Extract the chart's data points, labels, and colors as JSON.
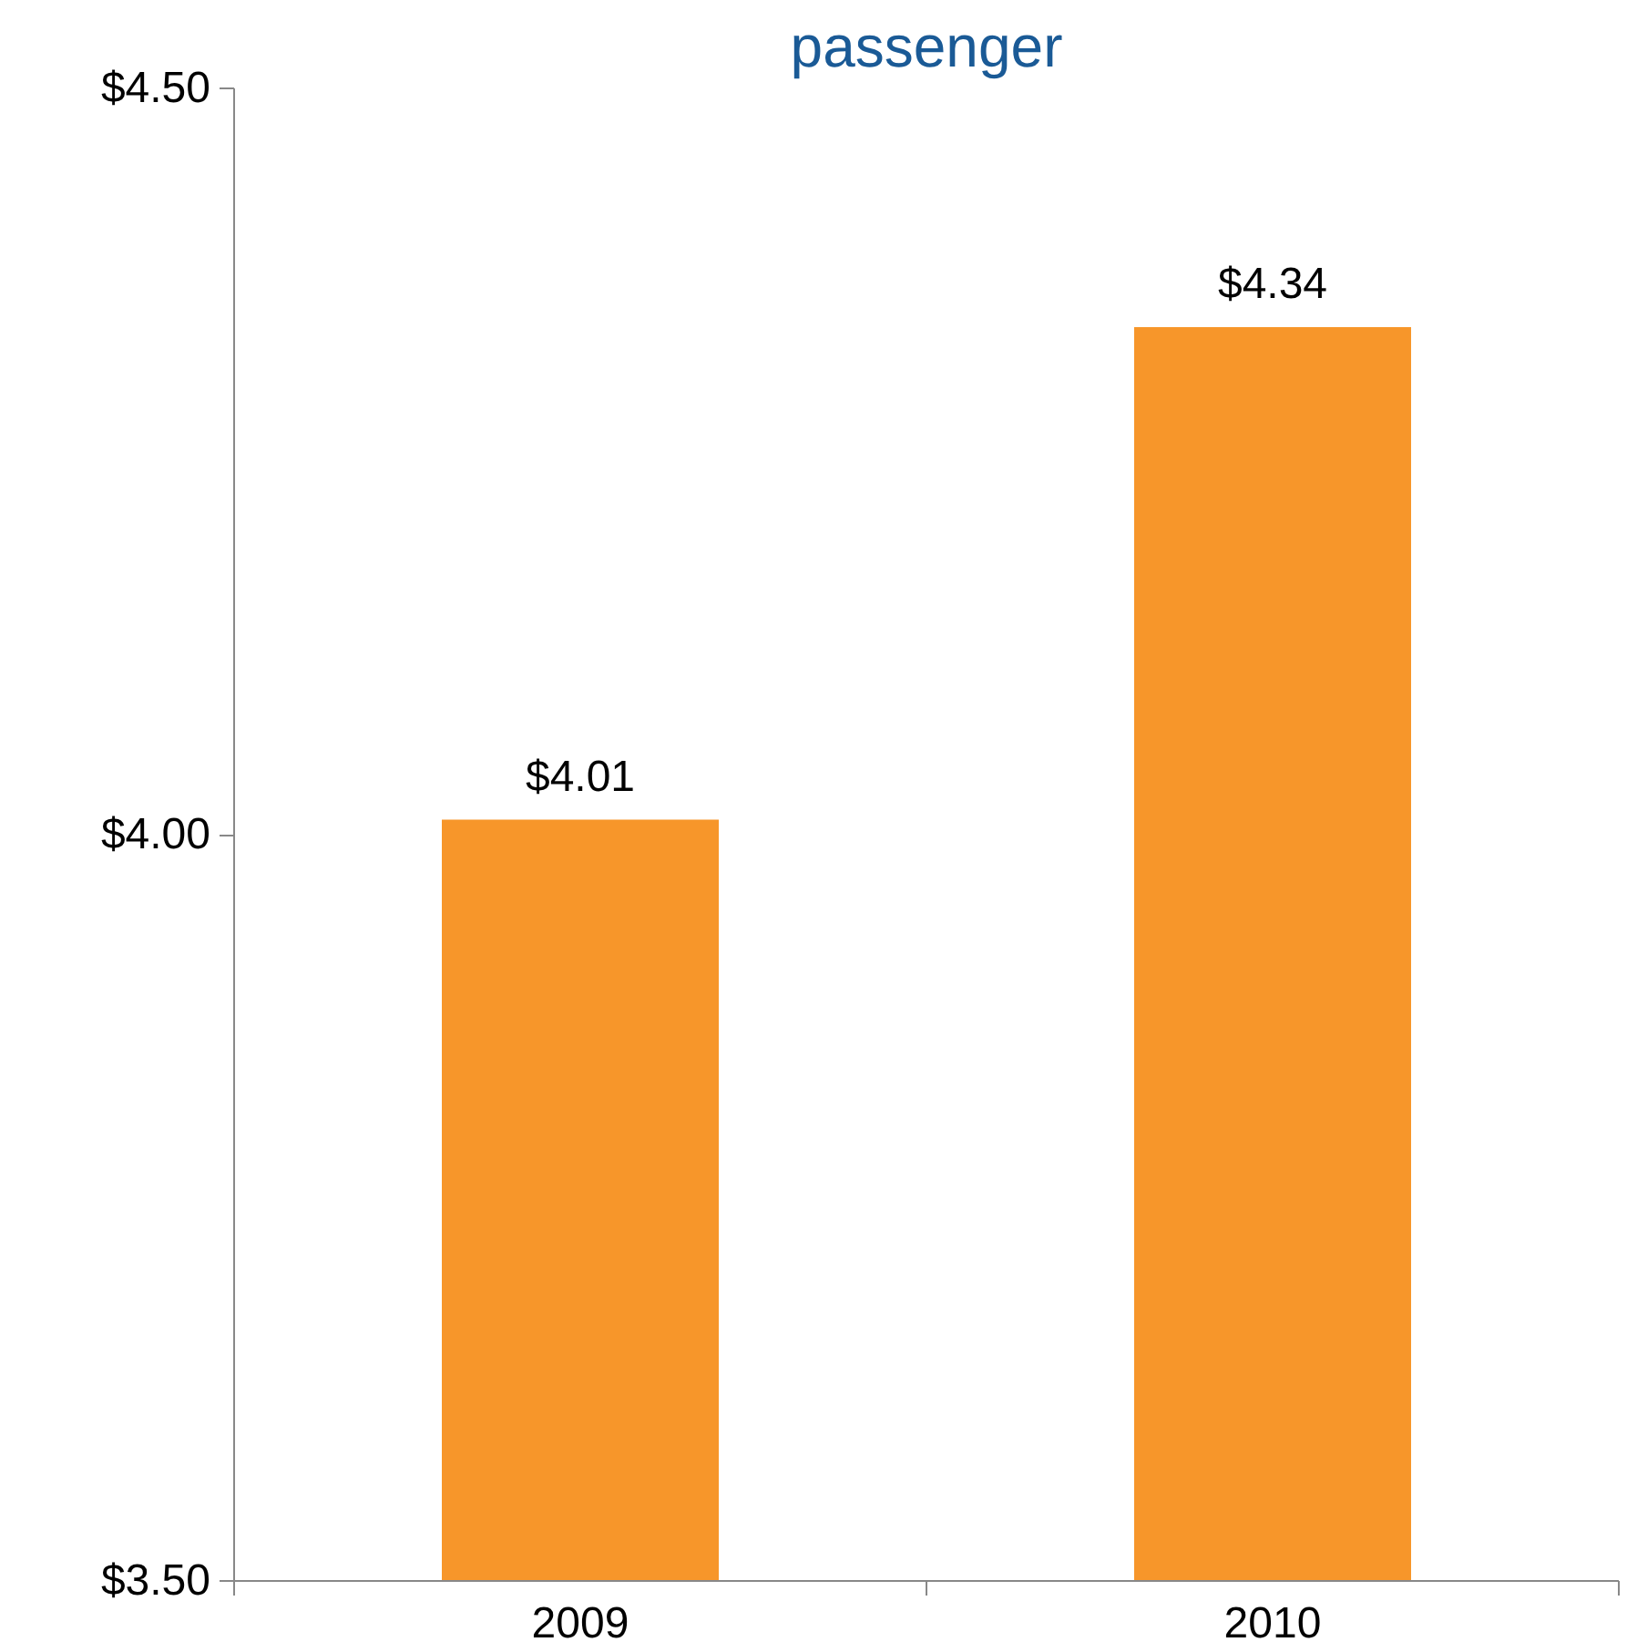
{
  "chart_data": {
    "type": "bar",
    "title": "passenger",
    "categories": [
      "2009",
      "2010"
    ],
    "series": [
      {
        "color": "#f7962a",
        "values": [
          4.01,
          4.34
        ],
        "value_labels": [
          "$4.01",
          "$4.34"
        ]
      }
    ],
    "ylim": [
      3.5,
      4.5
    ],
    "yticks": [
      {
        "value": 3.5,
        "label": "$3.50"
      },
      {
        "value": 4.0,
        "label": "$4.00"
      },
      {
        "value": 4.5,
        "label": "$4.50"
      }
    ],
    "grid": false
  }
}
